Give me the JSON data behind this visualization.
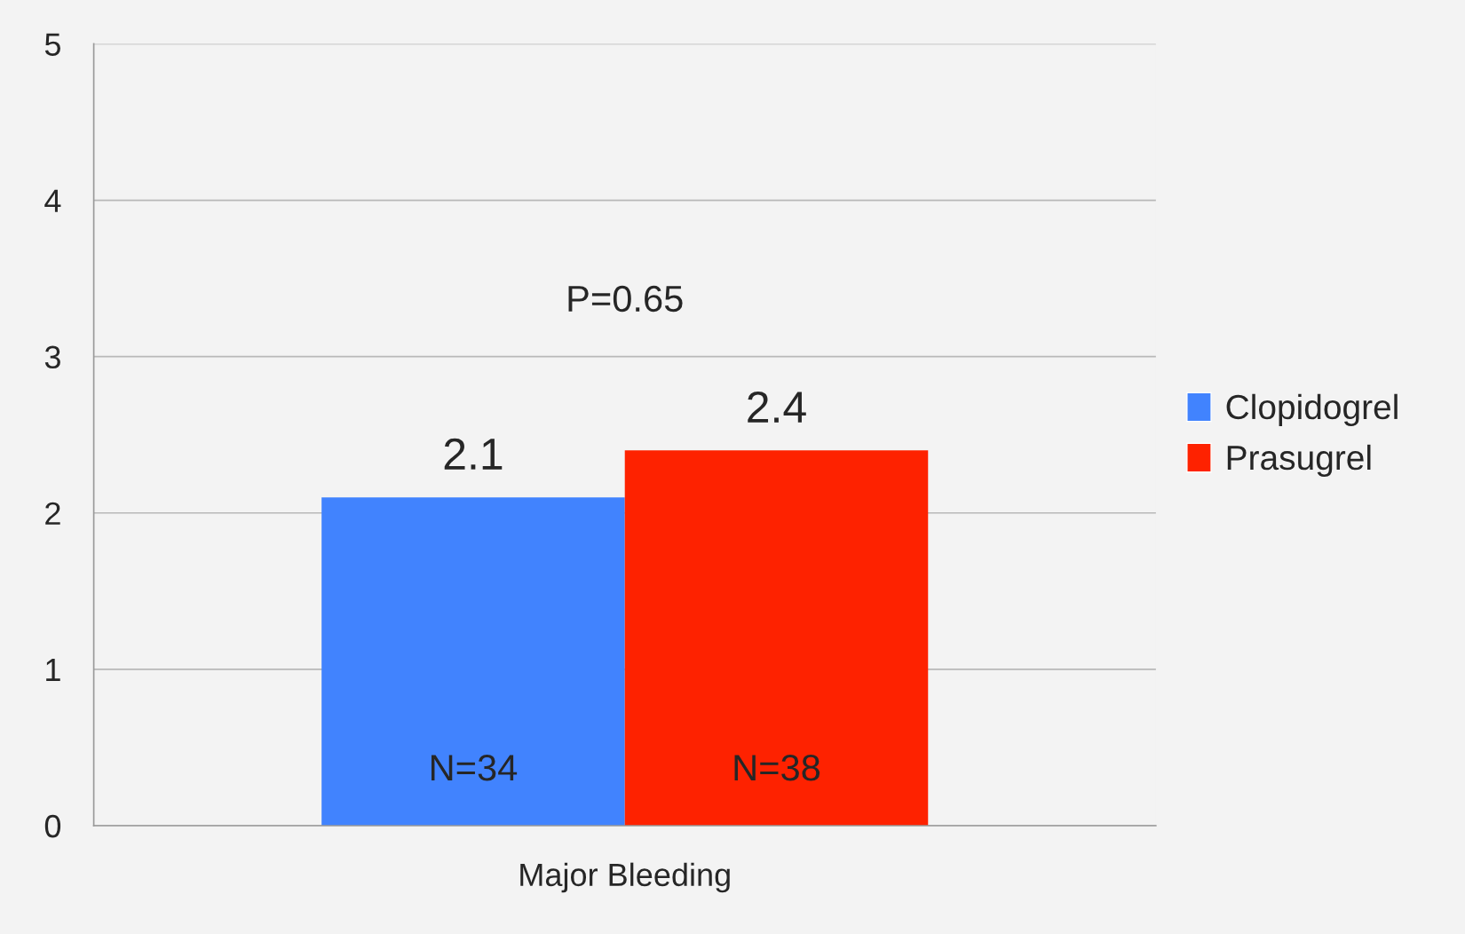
{
  "chart_data": {
    "type": "bar",
    "categories": [
      "Major Bleeding"
    ],
    "series": [
      {
        "name": "Clopidogrel",
        "color": "#4183fe",
        "values": [
          2.1
        ]
      },
      {
        "name": "Prasugrel",
        "color": "#fe2200",
        "values": [
          2.4
        ]
      }
    ],
    "ylim": [
      0,
      5
    ],
    "yticks": [
      0,
      1,
      2,
      3,
      4,
      5
    ],
    "grid": "y",
    "legend": "right",
    "data_labels": true,
    "annotations": [
      "P=0.65",
      "N=34",
      "N=38"
    ]
  }
}
